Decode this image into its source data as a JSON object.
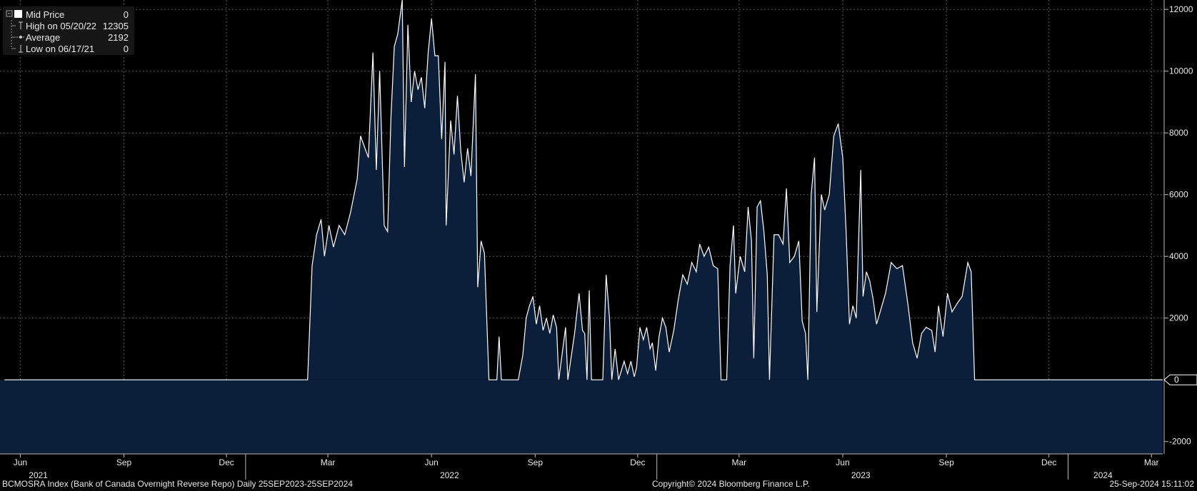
{
  "legend": {
    "items": [
      {
        "label": "Mid Price",
        "value": "0",
        "icon": "white-square-icon"
      },
      {
        "label": "High on 05/20/22",
        "value": "12305",
        "icon": "high-marker-icon"
      },
      {
        "label": "Average",
        "value": "2192",
        "icon": "average-marker-icon"
      },
      {
        "label": "Low on 06/17/21",
        "value": "0",
        "icon": "low-marker-icon"
      }
    ]
  },
  "footer": {
    "left": "BCMOSRA Index (Bank of Canada Overnight Reverse Repo)  Daily 25SEP2023-25SEP2024",
    "center": "Copyright© 2024 Bloomberg Finance L.P.",
    "right": "25-Sep-2024 15:11:02"
  },
  "colors": {
    "background": "#000000",
    "fill": "#0b1f3a",
    "line": "#ffffff",
    "grid": "#5a5a5a",
    "text": "#e8e8e8"
  },
  "chart_data": {
    "type": "area",
    "series": [
      {
        "name": "Mid Price",
        "points": [
          [
            "2021-06-01",
            0
          ],
          [
            "2022-02-25",
            0
          ],
          [
            "2022-03-01",
            3700
          ],
          [
            "2022-03-05",
            4700
          ],
          [
            "2022-03-09",
            5200
          ],
          [
            "2022-03-12",
            4000
          ],
          [
            "2022-03-16",
            5000
          ],
          [
            "2022-03-20",
            4300
          ],
          [
            "2022-03-25",
            5000
          ],
          [
            "2022-03-30",
            4700
          ],
          [
            "2022-04-04",
            5400
          ],
          [
            "2022-04-10",
            6500
          ],
          [
            "2022-04-13",
            7900
          ],
          [
            "2022-04-16",
            7600
          ],
          [
            "2022-04-20",
            7200
          ],
          [
            "2022-04-24",
            10600
          ],
          [
            "2022-04-27",
            6800
          ],
          [
            "2022-04-30",
            10000
          ],
          [
            "2022-05-04",
            5000
          ],
          [
            "2022-05-07",
            4800
          ],
          [
            "2022-05-10",
            8500
          ],
          [
            "2022-05-13",
            10800
          ],
          [
            "2022-05-16",
            11200
          ],
          [
            "2022-05-20",
            12305
          ],
          [
            "2022-05-22",
            6900
          ],
          [
            "2022-05-25",
            11500
          ],
          [
            "2022-05-28",
            9000
          ],
          [
            "2022-05-31",
            10000
          ],
          [
            "2022-06-03",
            9400
          ],
          [
            "2022-06-06",
            9800
          ],
          [
            "2022-06-09",
            8800
          ],
          [
            "2022-06-12",
            10600
          ],
          [
            "2022-06-15",
            11700
          ],
          [
            "2022-06-18",
            10500
          ],
          [
            "2022-06-21",
            10500
          ],
          [
            "2022-06-24",
            7800
          ],
          [
            "2022-06-27",
            10300
          ],
          [
            "2022-06-28",
            5000
          ],
          [
            "2022-07-02",
            8400
          ],
          [
            "2022-07-05",
            7300
          ],
          [
            "2022-07-08",
            9200
          ],
          [
            "2022-07-11",
            7400
          ],
          [
            "2022-07-14",
            6400
          ],
          [
            "2022-07-17",
            7500
          ],
          [
            "2022-07-20",
            6600
          ],
          [
            "2022-07-24",
            9900
          ],
          [
            "2022-07-26",
            3000
          ],
          [
            "2022-07-29",
            4500
          ],
          [
            "2022-08-01",
            4100
          ],
          [
            "2022-08-03",
            2000
          ],
          [
            "2022-08-05",
            0
          ],
          [
            "2022-08-12",
            0
          ],
          [
            "2022-08-14",
            1400
          ],
          [
            "2022-08-16",
            0
          ],
          [
            "2022-08-31",
            0
          ],
          [
            "2022-09-04",
            800
          ],
          [
            "2022-09-07",
            2000
          ],
          [
            "2022-09-10",
            2400
          ],
          [
            "2022-09-13",
            2700
          ],
          [
            "2022-09-16",
            1800
          ],
          [
            "2022-09-19",
            2400
          ],
          [
            "2022-09-22",
            1600
          ],
          [
            "2022-09-25",
            2000
          ],
          [
            "2022-09-28",
            1500
          ],
          [
            "2022-10-01",
            2100
          ],
          [
            "2022-10-04",
            1700
          ],
          [
            "2022-10-06",
            0
          ],
          [
            "2022-10-12",
            1700
          ],
          [
            "2022-10-14",
            0
          ],
          [
            "2022-10-20",
            1500
          ],
          [
            "2022-10-24",
            2800
          ],
          [
            "2022-10-27",
            1600
          ],
          [
            "2022-10-29",
            1500
          ],
          [
            "2022-10-31",
            0
          ],
          [
            "2022-11-02",
            2900
          ],
          [
            "2022-11-04",
            0
          ],
          [
            "2022-11-14",
            0
          ],
          [
            "2022-11-17",
            3400
          ],
          [
            "2022-11-20",
            2000
          ],
          [
            "2022-11-22",
            0
          ],
          [
            "2022-11-25",
            1000
          ],
          [
            "2022-11-28",
            0
          ],
          [
            "2022-12-03",
            600
          ],
          [
            "2022-12-06",
            200
          ],
          [
            "2022-12-09",
            600
          ],
          [
            "2022-12-12",
            100
          ],
          [
            "2022-12-14",
            400
          ],
          [
            "2022-12-17",
            1700
          ],
          [
            "2022-12-20",
            1300
          ],
          [
            "2022-12-23",
            1700
          ],
          [
            "2022-12-26",
            1000
          ],
          [
            "2022-12-28",
            1200
          ],
          [
            "2022-12-31",
            300
          ],
          [
            "2023-01-03",
            1400
          ],
          [
            "2023-01-06",
            2000
          ],
          [
            "2023-01-09",
            1700
          ],
          [
            "2023-01-12",
            900
          ],
          [
            "2023-01-16",
            1600
          ],
          [
            "2023-01-20",
            2600
          ],
          [
            "2023-01-24",
            3400
          ],
          [
            "2023-01-28",
            3100
          ],
          [
            "2023-02-01",
            3800
          ],
          [
            "2023-02-05",
            3500
          ],
          [
            "2023-02-08",
            4400
          ],
          [
            "2023-02-12",
            4000
          ],
          [
            "2023-02-16",
            4300
          ],
          [
            "2023-02-20",
            3700
          ],
          [
            "2023-02-24",
            3600
          ],
          [
            "2023-02-27",
            0
          ],
          [
            "2023-03-04",
            0
          ],
          [
            "2023-03-07",
            3700
          ],
          [
            "2023-03-10",
            5000
          ],
          [
            "2023-03-12",
            2800
          ],
          [
            "2023-03-16",
            4000
          ],
          [
            "2023-03-20",
            3500
          ],
          [
            "2023-03-23",
            5600
          ],
          [
            "2023-03-26",
            4500
          ],
          [
            "2023-03-28",
            700
          ],
          [
            "2023-03-31",
            5600
          ],
          [
            "2023-04-03",
            5800
          ],
          [
            "2023-04-06",
            4800
          ],
          [
            "2023-04-09",
            3400
          ],
          [
            "2023-04-11",
            0
          ],
          [
            "2023-04-15",
            4700
          ],
          [
            "2023-04-19",
            4700
          ],
          [
            "2023-04-23",
            4400
          ],
          [
            "2023-04-26",
            6200
          ],
          [
            "2023-04-29",
            3800
          ],
          [
            "2023-05-03",
            4000
          ],
          [
            "2023-05-07",
            4500
          ],
          [
            "2023-05-10",
            1900
          ],
          [
            "2023-05-13",
            1500
          ],
          [
            "2023-05-15",
            0
          ],
          [
            "2023-05-18",
            6000
          ],
          [
            "2023-05-21",
            7200
          ],
          [
            "2023-05-23",
            2200
          ],
          [
            "2023-05-27",
            6000
          ],
          [
            "2023-05-30",
            5500
          ],
          [
            "2023-06-03",
            6000
          ],
          [
            "2023-06-07",
            7900
          ],
          [
            "2023-06-11",
            8300
          ],
          [
            "2023-06-15",
            7200
          ],
          [
            "2023-06-18",
            4800
          ],
          [
            "2023-06-21",
            1800
          ],
          [
            "2023-06-24",
            2400
          ],
          [
            "2023-06-27",
            2000
          ],
          [
            "2023-07-01",
            6800
          ],
          [
            "2023-07-03",
            2700
          ],
          [
            "2023-07-06",
            3500
          ],
          [
            "2023-07-09",
            3200
          ],
          [
            "2023-07-12",
            2600
          ],
          [
            "2023-07-15",
            1800
          ],
          [
            "2023-07-19",
            2300
          ],
          [
            "2023-07-23",
            2800
          ],
          [
            "2023-07-28",
            3800
          ],
          [
            "2023-08-02",
            3600
          ],
          [
            "2023-08-07",
            3700
          ],
          [
            "2023-08-12",
            2400
          ],
          [
            "2023-08-16",
            1200
          ],
          [
            "2023-08-20",
            700
          ],
          [
            "2023-08-24",
            1500
          ],
          [
            "2023-08-28",
            1700
          ],
          [
            "2023-09-02",
            1600
          ],
          [
            "2023-09-05",
            900
          ],
          [
            "2023-09-08",
            2400
          ],
          [
            "2023-09-12",
            1400
          ],
          [
            "2023-09-16",
            2800
          ],
          [
            "2023-09-20",
            2200
          ],
          [
            "2023-09-25",
            2500
          ],
          [
            "2023-09-29",
            2700
          ],
          [
            "2023-10-04",
            3800
          ],
          [
            "2023-10-07",
            3500
          ],
          [
            "2023-10-10",
            0
          ],
          [
            "2024-03-25",
            0
          ]
        ]
      }
    ],
    "xlim": [
      "2021-05-28",
      "2024-03-25"
    ],
    "ylim": [
      -2400,
      12305
    ],
    "yticks": [
      -2000,
      2000,
      4000,
      6000,
      8000,
      10000,
      12000
    ],
    "current_value": "0",
    "xtick_months": [
      {
        "date": "2021-06-15",
        "label": "Jun"
      },
      {
        "date": "2021-09-15",
        "label": "Sep"
      },
      {
        "date": "2021-12-15",
        "label": "Dec"
      },
      {
        "date": "2022-03-15",
        "label": "Mar"
      },
      {
        "date": "2022-06-15",
        "label": "Jun"
      },
      {
        "date": "2022-09-15",
        "label": "Sep"
      },
      {
        "date": "2022-12-15",
        "label": "Dec"
      },
      {
        "date": "2023-03-15",
        "label": "Mar"
      },
      {
        "date": "2023-06-15",
        "label": "Jun"
      },
      {
        "date": "2023-09-15",
        "label": "Sep"
      },
      {
        "date": "2023-12-15",
        "label": "Dec"
      },
      {
        "date": "2024-03-15",
        "label": "Mar"
      }
    ],
    "xtick_years": [
      {
        "date": "2021-07-01",
        "label": "2021"
      },
      {
        "date": "2022-07-01",
        "label": "2022"
      },
      {
        "date": "2023-07-01",
        "label": "2023"
      },
      {
        "date": "2024-02-01",
        "label": "2024"
      }
    ],
    "year_boundaries": [
      "2022-01-01",
      "2023-01-01",
      "2024-01-01"
    ],
    "grid": true
  }
}
